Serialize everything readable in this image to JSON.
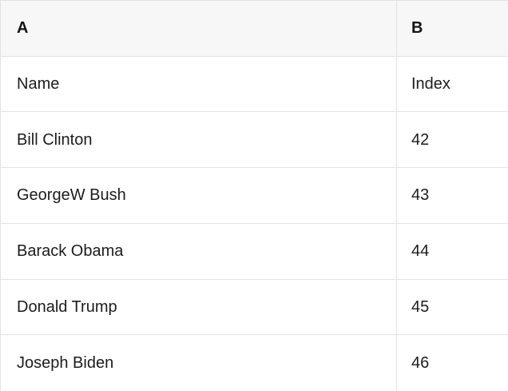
{
  "table": {
    "column_headers": {
      "a": "A",
      "b": "B"
    },
    "rows": [
      {
        "a": "Name",
        "b": "Index"
      },
      {
        "a": "Bill Clinton",
        "b": "42"
      },
      {
        "a": "GeorgeW Bush",
        "b": "43"
      },
      {
        "a": "Barack Obama",
        "b": "44"
      },
      {
        "a": "Donald Trump",
        "b": "45"
      },
      {
        "a": "Joseph Biden",
        "b": "46"
      }
    ]
  },
  "colors": {
    "header_background": "#f7f7f7",
    "border": "#e2e2e2",
    "text": "#1c1c1e",
    "background": "#ffffff"
  }
}
